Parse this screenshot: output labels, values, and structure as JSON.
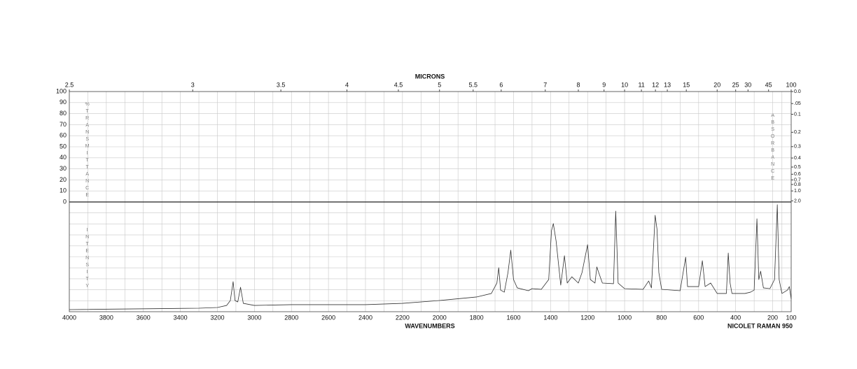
{
  "chart_data": {
    "type": "line",
    "title": "MICRONS",
    "x_label": "WAVENUMBERS",
    "instrument": "NICOLET RAMAN 950",
    "y_label": "%TRANSMITTANCE",
    "y2_label": "ABSORBANCE",
    "intensity_label": "INTENSITY",
    "xlim": [
      4000,
      100
    ],
    "xticks": [
      4000,
      3800,
      3600,
      3400,
      3200,
      3000,
      2800,
      2600,
      2400,
      2200,
      2000,
      1800,
      1600,
      1400,
      1200,
      1000,
      800,
      600,
      400,
      200,
      100
    ],
    "micron_ticks": [
      2.5,
      3,
      3.5,
      4,
      4.5,
      5,
      5.5,
      6,
      7,
      8,
      9,
      10,
      11,
      12,
      13,
      15,
      20,
      25,
      30,
      45,
      100
    ],
    "ylim": [
      0,
      100
    ],
    "yticks": [
      0,
      10,
      20,
      30,
      40,
      50,
      60,
      70,
      80,
      90,
      100
    ],
    "y2ticks": [
      {
        "value": 0,
        "label": "0.0"
      },
      {
        "value": 0.05,
        "label": ".05"
      },
      0.1,
      0.2,
      0.3,
      0.4,
      0.5,
      0.6,
      0.7,
      0.8,
      {
        "value": 1,
        "label": "1.0"
      },
      {
        "value": 2,
        "label": "2.0"
      }
    ],
    "intensity_lim": [
      0,
      100
    ],
    "grid": true,
    "series": [
      {
        "color": "#333333",
        "x": [
          4000,
          3300,
          3200,
          3150,
          3130,
          3115,
          3105,
          3090,
          3075,
          3060,
          3000,
          2800,
          2400,
          2200,
          2000,
          1800,
          1720,
          1690,
          1680,
          1670,
          1650,
          1630,
          1615,
          1600,
          1580,
          1520,
          1500,
          1450,
          1410,
          1395,
          1385,
          1370,
          1345,
          1325,
          1310,
          1285,
          1250,
          1230,
          1215,
          1200,
          1185,
          1160,
          1150,
          1140,
          1120,
          1060,
          1048,
          1035,
          1000,
          900,
          870,
          855,
          835,
          825,
          815,
          800,
          700,
          670,
          660,
          600,
          580,
          565,
          535,
          500,
          450,
          440,
          430,
          420,
          350,
          320,
          300,
          285,
          275,
          265,
          250,
          215,
          190,
          175,
          165,
          150,
          120,
          110,
          100
        ],
        "values": [
          1.9,
          3.2,
          3.8,
          5.7,
          10.2,
          27.4,
          10.2,
          8.9,
          22.3,
          7.6,
          5.7,
          6.4,
          6.4,
          7.6,
          10.2,
          13.4,
          16.6,
          26.1,
          40.1,
          19.7,
          17.8,
          35.7,
          56.1,
          29.3,
          21.7,
          19.1,
          21.0,
          20.4,
          29.3,
          73.9,
          80.3,
          64.3,
          24.2,
          51.0,
          26.1,
          31.8,
          26.1,
          35.7,
          48.4,
          61.1,
          29.3,
          26.1,
          40.8,
          35.7,
          26.1,
          25.5,
          91.7,
          26.1,
          21.0,
          20.4,
          28.0,
          21.7,
          87.9,
          75.2,
          35.7,
          20.4,
          19.1,
          49.7,
          22.9,
          22.9,
          46.5,
          22.9,
          26.1,
          16.6,
          16.6,
          53.5,
          26.1,
          16.6,
          16.6,
          17.8,
          19.7,
          84.7,
          29.3,
          36.9,
          21.7,
          21.0,
          29.3,
          97.5,
          29.3,
          16.6,
          19.7,
          22.9,
          11.5
        ]
      }
    ]
  }
}
